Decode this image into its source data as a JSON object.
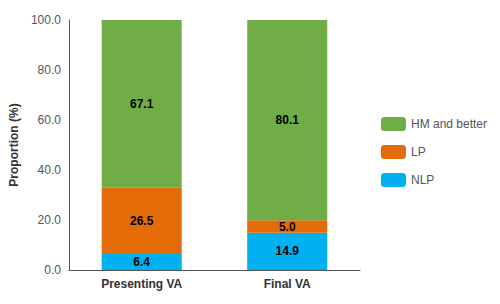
{
  "chart_data": {
    "type": "bar",
    "stacked": true,
    "categories": [
      "Presenting VA",
      "Final VA"
    ],
    "series": [
      {
        "name": "NLP",
        "color": "#00B0F0",
        "values": [
          6.4,
          14.9
        ]
      },
      {
        "name": "LP",
        "color": "#E36C09",
        "values": [
          26.5,
          5.0
        ],
        "value_labels": [
          "26.5",
          "5.0"
        ]
      },
      {
        "name": "HM and better",
        "color": "#70AD47",
        "values": [
          67.1,
          80.1
        ]
      }
    ],
    "ylabel": "Proportion (%)",
    "ylim": [
      0,
      100
    ],
    "yticks": [
      {
        "value": 0,
        "label": "0.0"
      },
      {
        "value": 20,
        "label": "20.0"
      },
      {
        "value": 40,
        "label": "40.0"
      },
      {
        "value": 60,
        "label": "60.0"
      },
      {
        "value": 80,
        "label": "80.0"
      },
      {
        "value": 100,
        "label": "100.0"
      }
    ],
    "grid": false,
    "legend": "right",
    "data_labels": true
  }
}
